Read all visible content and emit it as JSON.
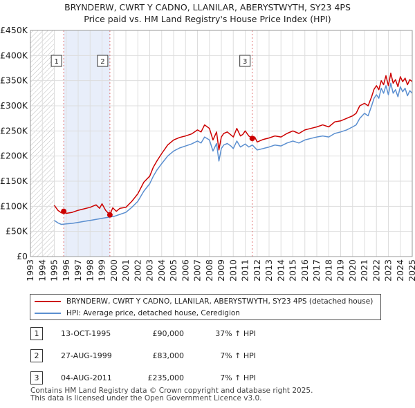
{
  "chart_data": {
    "type": "line",
    "title": "BRYNDERW, CWRT Y CADNO, LLANILAR, ABERYSTWYTH, SY23 4PS",
    "subtitle": "Price paid vs. HM Land Registry's House Price Index (HPI)",
    "xlim": [
      1993,
      2025
    ],
    "ylim": [
      0,
      450000
    ],
    "x_ticks": [
      "1993",
      "1994",
      "1995",
      "1996",
      "1997",
      "1998",
      "1999",
      "2000",
      "2001",
      "2002",
      "2003",
      "2004",
      "2005",
      "2006",
      "2007",
      "2008",
      "2009",
      "2010",
      "2011",
      "2012",
      "2013",
      "2014",
      "2015",
      "2016",
      "2017",
      "2018",
      "2019",
      "2020",
      "2021",
      "2022",
      "2023",
      "2024",
      "2025"
    ],
    "y_ticks": [
      {
        "value": 0,
        "label": "£0"
      },
      {
        "value": 50000,
        "label": "£50K"
      },
      {
        "value": 100000,
        "label": "£100K"
      },
      {
        "value": 150000,
        "label": "£150K"
      },
      {
        "value": 200000,
        "label": "£200K"
      },
      {
        "value": 250000,
        "label": "£250K"
      },
      {
        "value": 300000,
        "label": "£300K"
      },
      {
        "value": 350000,
        "label": "£350K"
      },
      {
        "value": 400000,
        "label": "£400K"
      },
      {
        "value": 450000,
        "label": "£450K"
      }
    ],
    "hatched_before": 1995.0,
    "shaded_span": [
      1995.79,
      1999.66
    ],
    "series": [
      {
        "name": "BRYNDERW, CWRT Y CADNO, LLANILAR, ABERYSTWYTH, SY23 4PS (detached house)",
        "color": "#cc0000",
        "x": [
          1995.0,
          1995.3,
          1995.6,
          1995.79,
          1996.0,
          1996.5,
          1997.0,
          1997.5,
          1998.0,
          1998.5,
          1998.8,
          1999.0,
          1999.3,
          1999.66,
          1999.9,
          2000.2,
          2000.5,
          2001.0,
          2001.5,
          2002.0,
          2002.5,
          2003.0,
          2003.3,
          2003.6,
          2004.0,
          2004.5,
          2005.0,
          2005.5,
          2006.0,
          2006.5,
          2007.0,
          2007.3,
          2007.6,
          2008.0,
          2008.3,
          2008.6,
          2008.8,
          2009.0,
          2009.2,
          2009.5,
          2009.8,
          2010.0,
          2010.3,
          2010.6,
          2010.8,
          2011.0,
          2011.3,
          2011.6,
          2011.8,
          2012.0,
          2012.5,
          2013.0,
          2013.5,
          2014.0,
          2014.5,
          2015.0,
          2015.5,
          2016.0,
          2016.5,
          2017.0,
          2017.5,
          2018.0,
          2018.5,
          2019.0,
          2019.5,
          2020.0,
          2020.3,
          2020.6,
          2021.0,
          2021.3,
          2021.6,
          2021.8,
          2022.0,
          2022.2,
          2022.4,
          2022.6,
          2022.8,
          2023.0,
          2023.2,
          2023.4,
          2023.6,
          2023.8,
          2024.0,
          2024.2,
          2024.4,
          2024.6,
          2024.8,
          2025.0
        ],
        "y": [
          102000,
          92000,
          87000,
          90000,
          86000,
          88000,
          92000,
          95000,
          98000,
          103000,
          96000,
          105000,
          92000,
          83000,
          97000,
          90000,
          96000,
          98000,
          110000,
          125000,
          148000,
          160000,
          178000,
          190000,
          205000,
          222000,
          232000,
          237000,
          240000,
          244000,
          252000,
          248000,
          262000,
          255000,
          232000,
          248000,
          212000,
          238000,
          245000,
          248000,
          242000,
          238000,
          255000,
          240000,
          243000,
          250000,
          240000,
          235000,
          238000,
          228000,
          233000,
          236000,
          240000,
          238000,
          245000,
          250000,
          245000,
          252000,
          255000,
          258000,
          262000,
          258000,
          268000,
          270000,
          275000,
          280000,
          285000,
          300000,
          305000,
          300000,
          318000,
          333000,
          340000,
          332000,
          350000,
          342000,
          360000,
          340000,
          365000,
          345000,
          352000,
          338000,
          358000,
          348000,
          355000,
          342000,
          352000,
          348000
        ]
      },
      {
        "name": "HPI: Average price, detached house, Ceredigion",
        "color": "#5b8fd0",
        "x": [
          1995.0,
          1995.3,
          1995.6,
          1996.0,
          1996.5,
          1997.0,
          1997.5,
          1998.0,
          1998.5,
          1999.0,
          1999.5,
          2000.0,
          2000.5,
          2001.0,
          2001.5,
          2002.0,
          2002.5,
          2003.0,
          2003.3,
          2003.6,
          2004.0,
          2004.5,
          2005.0,
          2005.5,
          2006.0,
          2006.5,
          2007.0,
          2007.3,
          2007.6,
          2008.0,
          2008.3,
          2008.6,
          2008.8,
          2009.0,
          2009.2,
          2009.5,
          2009.8,
          2010.0,
          2010.3,
          2010.6,
          2011.0,
          2011.3,
          2011.6,
          2012.0,
          2012.5,
          2013.0,
          2013.5,
          2014.0,
          2014.5,
          2015.0,
          2015.5,
          2016.0,
          2016.5,
          2017.0,
          2017.5,
          2018.0,
          2018.5,
          2019.0,
          2019.5,
          2020.0,
          2020.3,
          2020.6,
          2021.0,
          2021.3,
          2021.6,
          2021.8,
          2022.0,
          2022.2,
          2022.4,
          2022.6,
          2022.8,
          2023.0,
          2023.2,
          2023.4,
          2023.6,
          2023.8,
          2024.0,
          2024.2,
          2024.4,
          2024.6,
          2024.8,
          2025.0
        ],
        "y": [
          72000,
          67000,
          64000,
          65000,
          66000,
          68000,
          70000,
          72000,
          74000,
          76000,
          78000,
          80000,
          84000,
          88000,
          98000,
          110000,
          130000,
          145000,
          160000,
          172000,
          185000,
          200000,
          210000,
          216000,
          220000,
          224000,
          230000,
          226000,
          238000,
          232000,
          210000,
          225000,
          190000,
          215000,
          222000,
          225000,
          220000,
          215000,
          230000,
          218000,
          224000,
          218000,
          222000,
          212000,
          215000,
          218000,
          222000,
          220000,
          226000,
          230000,
          226000,
          232000,
          235000,
          238000,
          240000,
          238000,
          245000,
          248000,
          252000,
          258000,
          262000,
          275000,
          285000,
          280000,
          300000,
          315000,
          322000,
          315000,
          335000,
          325000,
          340000,
          322000,
          345000,
          325000,
          332000,
          318000,
          338000,
          328000,
          335000,
          320000,
          330000,
          325000
        ]
      }
    ],
    "sales": [
      {
        "label": "1",
        "x": 1995.79,
        "value": 90000
      },
      {
        "label": "2",
        "x": 1999.66,
        "value": 83000
      },
      {
        "label": "3",
        "x": 2011.59,
        "value": 235000
      }
    ]
  },
  "legend": {
    "property_label": "BRYNDERW, CWRT Y CADNO, LLANILAR, ABERYSTWYTH, SY23 4PS (detached house)",
    "hpi_label": "HPI: Average price, detached house, Ceredigion"
  },
  "sales_table": [
    {
      "num": "1",
      "date": "13-OCT-1995",
      "price": "£90,000",
      "hpi": "37% ↑ HPI"
    },
    {
      "num": "2",
      "date": "27-AUG-1999",
      "price": "£83,000",
      "hpi": "7% ↑ HPI"
    },
    {
      "num": "3",
      "date": "04-AUG-2011",
      "price": "£235,000",
      "hpi": "7% ↑ HPI"
    }
  ],
  "footer": {
    "line1": "Contains HM Land Registry data © Crown copyright and database right 2025.",
    "line2": "This data is licensed under the Open Government Licence v3.0."
  }
}
